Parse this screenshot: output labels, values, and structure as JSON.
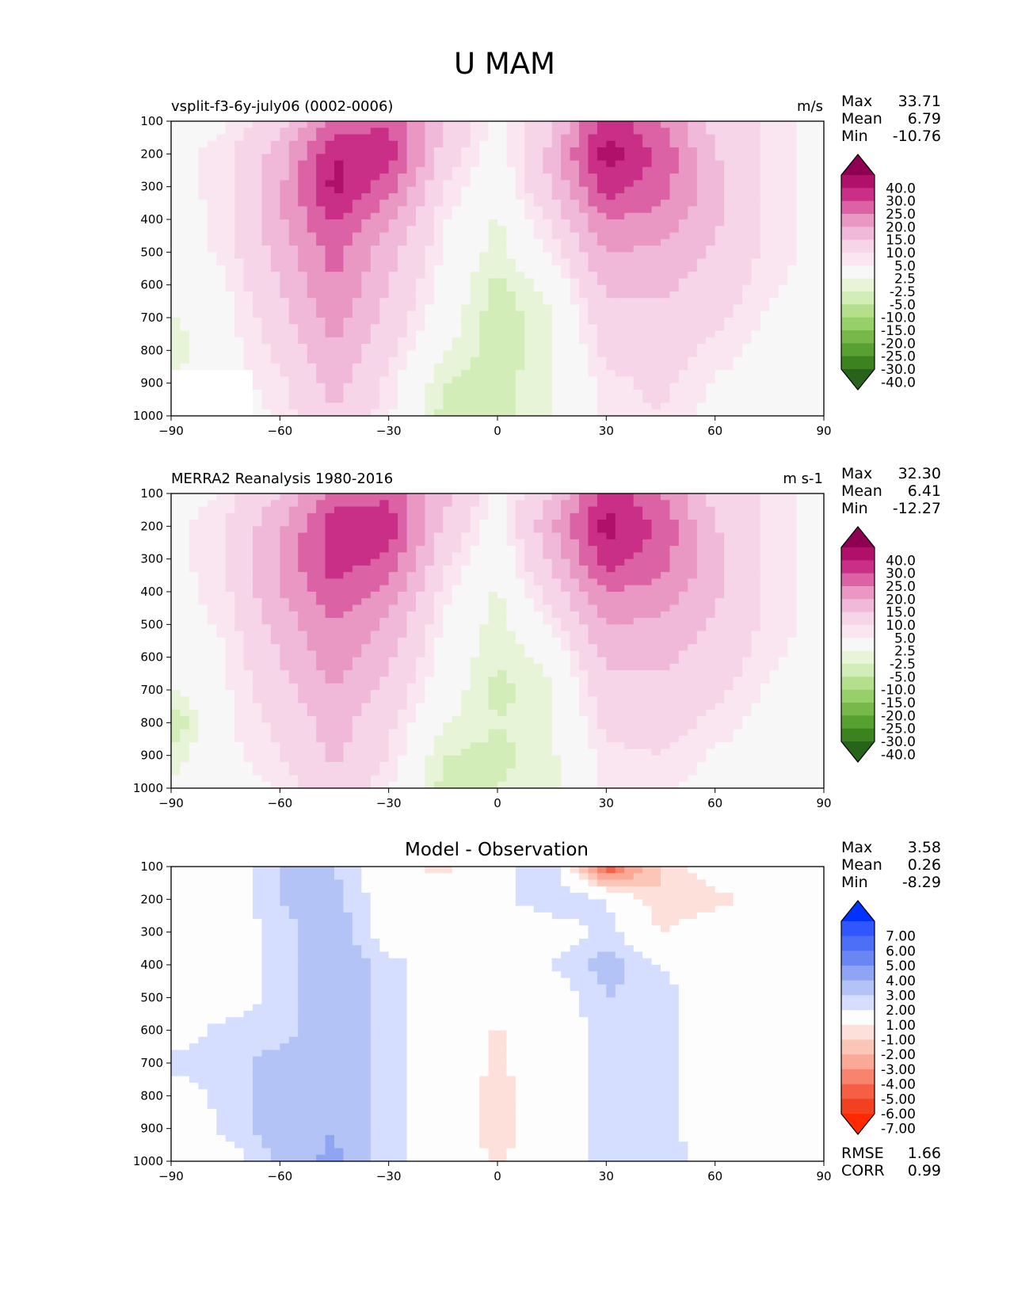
{
  "figure": {
    "title": "U MAM"
  },
  "colors": {
    "diverging_pink_green": [
      "#8e0152",
      "#b0106a",
      "#c92f87",
      "#db62a4",
      "#e898c3",
      "#f1b9d9",
      "#f7d5e8",
      "#f9e6f0",
      "#f7f7f7",
      "#e7f4d8",
      "#d2edb8",
      "#b5df8d",
      "#97cf6a",
      "#78b84a",
      "#57a032",
      "#3c821e",
      "#276419"
    ],
    "diverging_blue_red": [
      "#0033ff",
      "#2f56ff",
      "#4d6ff8",
      "#6a86f2",
      "#8fa5f3",
      "#b3c3f5",
      "#d5deff",
      "#fdfdfd",
      "#fde0da",
      "#fbc6b8",
      "#fba896",
      "#f9846d",
      "#f75f44",
      "#f2411e",
      "#ff2a00"
    ]
  },
  "panels": [
    {
      "id": "model",
      "left_title": "vsplit-f3-6y-july06 (0002-0006)",
      "center_title": "",
      "units": "m/s",
      "stats": [
        {
          "label": "Max",
          "value": "33.71"
        },
        {
          "label": "Mean",
          "value": "6.79"
        },
        {
          "label": "Min",
          "value": "-10.76"
        }
      ],
      "extra_stats": [],
      "colorbar_labels": [
        "40.0",
        "30.0",
        "25.0",
        "20.0",
        "15.0",
        "10.0",
        "5.0",
        "2.5",
        "-2.5",
        "-5.0",
        "-10.0",
        "-15.0",
        "-20.0",
        "-25.0",
        "-30.0",
        "-40.0"
      ],
      "colormap": "diverging_pink_green"
    },
    {
      "id": "obs",
      "left_title": "MERRA2 Reanalysis 1980-2016",
      "center_title": "",
      "units": "m s-1",
      "stats": [
        {
          "label": "Max",
          "value": "32.30"
        },
        {
          "label": "Mean",
          "value": "6.41"
        },
        {
          "label": "Min",
          "value": "-12.27"
        }
      ],
      "extra_stats": [],
      "colorbar_labels": [
        "40.0",
        "30.0",
        "25.0",
        "20.0",
        "15.0",
        "10.0",
        "5.0",
        "2.5",
        "-2.5",
        "-5.0",
        "-10.0",
        "-15.0",
        "-20.0",
        "-25.0",
        "-30.0",
        "-40.0"
      ],
      "colormap": "diverging_pink_green"
    },
    {
      "id": "diff",
      "left_title": "",
      "center_title": "Model - Observation",
      "units": "",
      "stats": [
        {
          "label": "Max",
          "value": "3.58"
        },
        {
          "label": "Mean",
          "value": "0.26"
        },
        {
          "label": "Min",
          "value": "-8.29"
        }
      ],
      "extra_stats": [
        {
          "label": "RMSE",
          "value": "1.66"
        },
        {
          "label": "CORR",
          "value": "0.99"
        }
      ],
      "colorbar_labels": [
        "7.00",
        "6.00",
        "5.00",
        "4.00",
        "3.00",
        "2.00",
        "1.00",
        "-1.00",
        "-2.00",
        "-3.00",
        "-4.00",
        "-5.00",
        "-6.00",
        "-7.00"
      ],
      "colormap": "diverging_blue_red"
    }
  ],
  "chart_data": [
    {
      "type": "heatmap",
      "title": "vsplit-f3-6y-july06 (0002-0006)",
      "units": "m/s",
      "x_ticks": [
        "−90",
        "−60",
        "−30",
        "0",
        "30",
        "60",
        "90"
      ],
      "y_ticks": [
        "100",
        "200",
        "300",
        "400",
        "500",
        "600",
        "700",
        "800",
        "900",
        "1000"
      ],
      "xlim": [
        -90,
        90
      ],
      "ylim": [
        1000,
        100
      ],
      "x": [
        -90,
        -75,
        -60,
        -45,
        -30,
        -15,
        0,
        15,
        30,
        45,
        60,
        75,
        90
      ],
      "y": [
        100,
        200,
        300,
        400,
        500,
        600,
        700,
        800,
        900,
        1000
      ],
      "z": [
        [
          0,
          2,
          8,
          22,
          24,
          10,
          1,
          8,
          28,
          20,
          8,
          4,
          1
        ],
        [
          1,
          4,
          12,
          30,
          28,
          8,
          0,
          12,
          33,
          24,
          10,
          4,
          1
        ],
        [
          1,
          4,
          14,
          32,
          22,
          5,
          -1,
          10,
          28,
          22,
          12,
          4,
          1
        ],
        [
          1,
          3,
          14,
          26,
          16,
          3,
          -3,
          6,
          20,
          18,
          11,
          4,
          1
        ],
        [
          1,
          3,
          12,
          22,
          12,
          2,
          -4,
          3,
          15,
          14,
          9,
          4,
          1
        ],
        [
          1,
          2,
          10,
          20,
          10,
          1,
          -6,
          -1,
          11,
          11,
          8,
          3,
          1
        ],
        [
          -3,
          1,
          8,
          17,
          8,
          0,
          -7,
          -3,
          8,
          9,
          6,
          2,
          0
        ],
        [
          -5,
          1,
          6,
          15,
          6,
          -2,
          -7,
          -3,
          6,
          7,
          4,
          1,
          0
        ],
        [
          -2,
          1,
          4,
          12,
          4,
          -5,
          -6,
          -3,
          4,
          6,
          2,
          1,
          0
        ],
        [
          -1,
          0,
          3,
          10,
          3,
          -6,
          -6,
          -3,
          3,
          5,
          1,
          0,
          0
        ]
      ],
      "masked_region": {
        "lat": [
          -90,
          -67
        ],
        "p": [
          870,
          1000
        ]
      },
      "stats": {
        "max": 33.71,
        "mean": 6.79,
        "min": -10.76
      },
      "levels": [
        -40,
        -30,
        -25,
        -20,
        -15,
        -10,
        -5,
        -2.5,
        2.5,
        5,
        10,
        15,
        20,
        25,
        30,
        40
      ]
    },
    {
      "type": "heatmap",
      "title": "MERRA2 Reanalysis 1980-2016",
      "units": "m s-1",
      "x_ticks": [
        "−90",
        "−60",
        "−30",
        "0",
        "30",
        "60",
        "90"
      ],
      "y_ticks": [
        "100",
        "200",
        "300",
        "400",
        "500",
        "600",
        "700",
        "800",
        "900",
        "1000"
      ],
      "xlim": [
        -90,
        90
      ],
      "ylim": [
        1000,
        100
      ],
      "x": [
        -90,
        -75,
        -60,
        -45,
        -30,
        -15,
        0,
        15,
        30,
        45,
        60,
        75,
        90
      ],
      "y": [
        100,
        200,
        300,
        400,
        500,
        600,
        700,
        800,
        900,
        1000
      ],
      "z": [
        [
          0,
          3,
          10,
          22,
          24,
          12,
          1,
          10,
          28,
          20,
          8,
          4,
          1
        ],
        [
          1,
          5,
          14,
          28,
          28,
          9,
          0,
          14,
          32,
          24,
          10,
          4,
          1
        ],
        [
          1,
          5,
          16,
          28,
          24,
          6,
          -1,
          11,
          28,
          22,
          12,
          4,
          1
        ],
        [
          1,
          4,
          15,
          24,
          18,
          4,
          -3,
          7,
          20,
          18,
          11,
          4,
          1
        ],
        [
          1,
          3,
          12,
          20,
          14,
          2,
          -4,
          3,
          15,
          14,
          9,
          4,
          1
        ],
        [
          1,
          2,
          10,
          18,
          11,
          1,
          -5,
          -1,
          11,
          11,
          8,
          3,
          1
        ],
        [
          -3,
          2,
          8,
          15,
          8,
          0,
          -6,
          -3,
          8,
          9,
          6,
          2,
          0
        ],
        [
          -8,
          2,
          6,
          12,
          6,
          -2,
          -5,
          -3,
          6,
          7,
          4,
          1,
          0
        ],
        [
          -4,
          1,
          5,
          11,
          5,
          -5,
          -6,
          -3,
          4,
          5,
          2,
          1,
          0
        ],
        [
          -2,
          0,
          3,
          8,
          3,
          -6,
          -5,
          -4,
          3,
          3,
          1,
          0,
          0
        ]
      ],
      "stats": {
        "max": 32.3,
        "mean": 6.41,
        "min": -12.27
      },
      "levels": [
        -40,
        -30,
        -25,
        -20,
        -15,
        -10,
        -5,
        -2.5,
        2.5,
        5,
        10,
        15,
        20,
        25,
        30,
        40
      ]
    },
    {
      "type": "heatmap",
      "title": "Model - Observation",
      "x_ticks": [
        "−90",
        "−60",
        "−30",
        "0",
        "30",
        "60",
        "90"
      ],
      "y_ticks": [
        "100",
        "200",
        "300",
        "400",
        "500",
        "600",
        "700",
        "800",
        "900",
        "1000"
      ],
      "xlim": [
        -90,
        90
      ],
      "ylim": [
        1000,
        100
      ],
      "x": [
        -90,
        -75,
        -60,
        -45,
        -30,
        -15,
        0,
        15,
        30,
        45,
        60,
        75,
        90
      ],
      "y": [
        100,
        200,
        300,
        400,
        500,
        600,
        700,
        800,
        900,
        1000
      ],
      "z": [
        [
          0,
          0,
          2,
          2,
          0,
          -1.5,
          0.5,
          2,
          -6,
          -2,
          0,
          0,
          0
        ],
        [
          0,
          0,
          2,
          2.5,
          0,
          0,
          0.5,
          2,
          1,
          -2,
          -1.5,
          0,
          0
        ],
        [
          0,
          0,
          1.5,
          3,
          0,
          0,
          0,
          0,
          1.5,
          -1,
          0,
          0,
          0
        ],
        [
          0,
          0,
          1.5,
          3,
          1.5,
          0,
          0,
          1,
          2.5,
          1,
          0,
          0,
          0
        ],
        [
          0,
          0,
          1.5,
          3,
          1.5,
          0,
          0,
          0,
          2,
          1.5,
          0,
          0,
          0
        ],
        [
          0,
          1.5,
          1.5,
          3,
          1.5,
          0,
          -1.2,
          0,
          1.5,
          1.5,
          0,
          0,
          0
        ],
        [
          1.5,
          1.5,
          2.5,
          3,
          1.5,
          0,
          -1.2,
          0,
          1.5,
          1.5,
          0,
          0,
          0
        ],
        [
          0,
          1.5,
          2.5,
          3,
          1.5,
          0,
          -1.5,
          0,
          1.5,
          1.5,
          0,
          0,
          0
        ],
        [
          -1.2,
          1.5,
          2.5,
          3,
          1.5,
          0,
          -1.5,
          0,
          1.5,
          1.5,
          0,
          0,
          0
        ],
        [
          0,
          0,
          2.5,
          3.2,
          1.5,
          0,
          -1.2,
          0,
          1.5,
          2,
          0,
          0,
          0
        ]
      ],
      "stats": {
        "max": 3.58,
        "mean": 0.26,
        "min": -8.29,
        "rmse": 1.66,
        "corr": 0.99
      },
      "levels": [
        -7,
        -6,
        -5,
        -4,
        -3,
        -2,
        -1,
        1,
        2,
        3,
        4,
        5,
        6,
        7
      ]
    }
  ]
}
